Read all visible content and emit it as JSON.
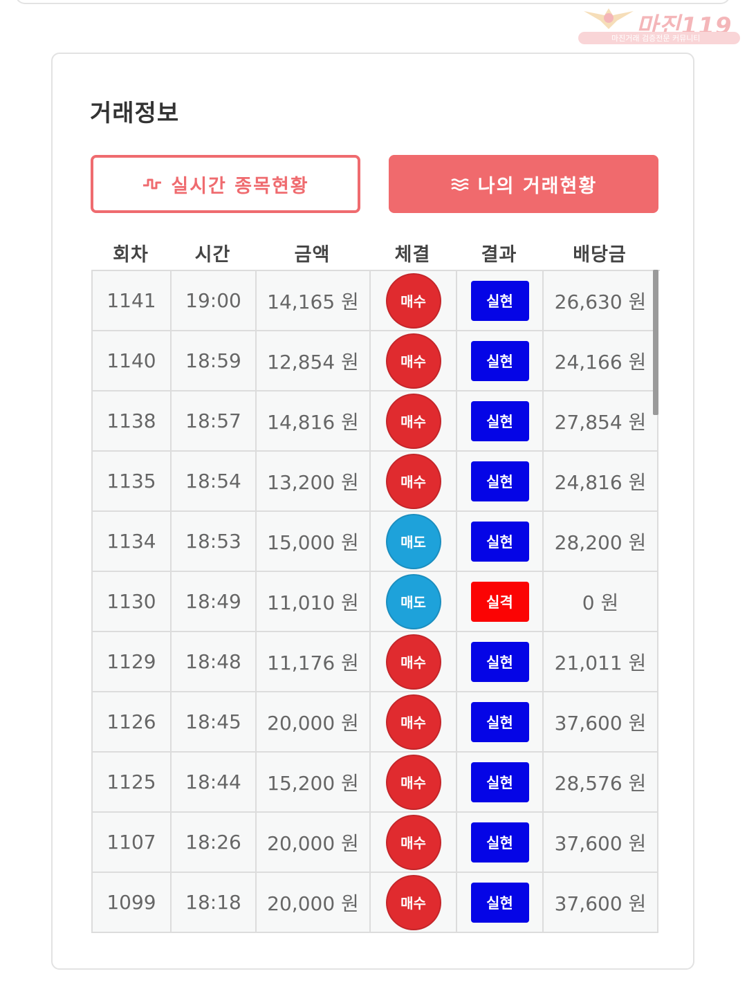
{
  "watermark": {
    "title": "마진119",
    "subtitle": "마진거래 검증전문 커뮤니티"
  },
  "card": {
    "title": "거래정보"
  },
  "buttons": {
    "live_label": "실시간 종목현황",
    "live_icon": "pulse-icon",
    "mine_label": "나의 거래현황",
    "mine_icon": "waves-icon"
  },
  "table": {
    "headers": [
      "회차",
      "시간",
      "금액",
      "체결",
      "결과",
      "배당금"
    ],
    "rows": [
      {
        "round": "1141",
        "time": "19:00",
        "amount": "14,165 원",
        "side": "매수",
        "result": "실현",
        "payout": "26,630 원"
      },
      {
        "round": "1140",
        "time": "18:59",
        "amount": "12,854 원",
        "side": "매수",
        "result": "실현",
        "payout": "24,166 원"
      },
      {
        "round": "1138",
        "time": "18:57",
        "amount": "14,816 원",
        "side": "매수",
        "result": "실현",
        "payout": "27,854 원"
      },
      {
        "round": "1135",
        "time": "18:54",
        "amount": "13,200 원",
        "side": "매수",
        "result": "실현",
        "payout": "24,816 원"
      },
      {
        "round": "1134",
        "time": "18:53",
        "amount": "15,000 원",
        "side": "매도",
        "result": "실현",
        "payout": "28,200 원"
      },
      {
        "round": "1130",
        "time": "18:49",
        "amount": "11,010 원",
        "side": "매도",
        "result": "실격",
        "payout": "0 원"
      },
      {
        "round": "1129",
        "time": "18:48",
        "amount": "11,176 원",
        "side": "매수",
        "result": "실현",
        "payout": "21,011 원"
      },
      {
        "round": "1126",
        "time": "18:45",
        "amount": "20,000 원",
        "side": "매수",
        "result": "실현",
        "payout": "37,600 원"
      },
      {
        "round": "1125",
        "time": "18:44",
        "amount": "15,200 원",
        "side": "매수",
        "result": "실현",
        "payout": "28,576 원"
      },
      {
        "round": "1107",
        "time": "18:26",
        "amount": "20,000 원",
        "side": "매수",
        "result": "실현",
        "payout": "37,600 원"
      },
      {
        "round": "1099",
        "time": "18:18",
        "amount": "20,000 원",
        "side": "매수",
        "result": "실현",
        "payout": "37,600 원"
      }
    ]
  },
  "colors": {
    "accent": "#f06a6d",
    "buy": "#e02b2f",
    "sell": "#1ea2da",
    "hit": "#0505e6",
    "miss": "#fb0404"
  }
}
